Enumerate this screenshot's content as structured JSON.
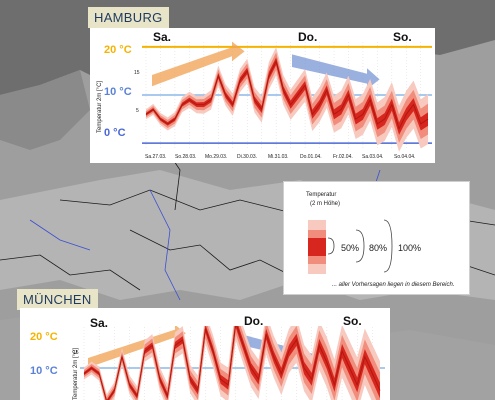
{
  "colors": {
    "warm_line": "#f5b300",
    "cold_line": "#4a67d6",
    "mid_line": "#8ab8e8",
    "band_outer": "#f7c9bf",
    "band_mid": "#f08d7c",
    "band_core": "#d7261e",
    "arrow_warm": "#f0a050",
    "arrow_cold": "#6f8fd0",
    "label_bg": "#e8e4c8",
    "label_text": "#1f3a5f"
  },
  "hamburg": {
    "city": "HAMBURG",
    "day_labels": [
      "Sa.",
      "Do.",
      "So."
    ],
    "temp_labels": {
      "t20": "20 °C",
      "t10": "10 °C",
      "t0": "0 °C"
    },
    "ylabel": "Temperatur 2m [°C]",
    "ytick_labels": [
      "15",
      "5"
    ],
    "date_labels": [
      "Sa.27.03.",
      "So.28.03.",
      "Mo.29.03.",
      "Di.30.03.",
      "Mi.31.03.",
      "Do.01.04.",
      "Fr.02.04.",
      "Sa.03.04.",
      "So.04.04."
    ]
  },
  "muenchen": {
    "city": "MÜNCHEN",
    "day_labels": [
      "Sa.",
      "Do.",
      "So."
    ],
    "temp_labels": {
      "t20": "20 °C",
      "t10": "10 °C"
    },
    "ylabel": "Temperatur 2m [°C]",
    "ytick_labels": [
      "15"
    ]
  },
  "legend": {
    "title": "Temperatur",
    "subtitle": "(2 m Höhe)",
    "p50": "50%",
    "p80": "80%",
    "p100": "100%",
    "note": "... aller Vorhersagen liegen in diesem Bereich."
  },
  "chart_data": [
    {
      "type": "area",
      "city": "HAMBURG",
      "x": [
        0,
        1,
        2,
        3,
        4,
        5,
        6,
        7,
        8,
        9,
        10,
        11,
        12,
        13,
        14,
        15,
        16,
        17,
        18,
        19,
        20,
        21,
        22,
        23,
        24,
        25,
        26,
        27,
        28,
        29,
        30,
        31,
        32,
        33,
        34,
        35,
        36,
        37,
        38,
        39
      ],
      "series": [
        {
          "values": [
            6,
            7,
            5,
            4,
            5,
            8,
            9,
            8,
            8,
            9,
            14,
            10,
            8,
            13,
            15,
            9,
            7,
            14,
            17,
            11,
            8,
            10,
            12,
            6,
            8,
            11,
            6,
            7,
            10,
            5,
            6,
            9,
            4,
            5,
            8,
            3,
            6,
            8,
            4,
            5
          ]
        }
      ],
      "x_tick_labels": [
        "Sa.27.03.",
        "So.28.03.",
        "Mo.29.03.",
        "Di.30.03.",
        "Mi.31.03.",
        "Do.01.04.",
        "Fr.02.04.",
        "Sa.03.04.",
        "So.04.04."
      ],
      "reference_lines": [
        20,
        10,
        0
      ],
      "ylabel": "Temperatur 2m [°C]",
      "ylim": [
        -1,
        21
      ],
      "grid": true
    },
    {
      "type": "area",
      "city": "MÜNCHEN",
      "x": [
        0,
        1,
        2,
        3,
        4,
        5,
        6,
        7,
        8,
        9,
        10,
        11,
        12,
        13,
        14,
        15,
        16,
        17,
        18,
        19,
        20,
        21,
        22,
        23,
        24,
        25,
        26,
        27,
        28,
        29,
        30,
        31,
        32,
        33,
        34,
        35,
        36,
        37,
        38,
        39
      ],
      "series": [
        {
          "values": [
            9,
            10,
            9,
            4,
            6,
            12,
            7,
            5,
            13,
            14,
            8,
            5,
            14,
            15,
            8,
            6,
            17,
            13,
            8,
            7,
            18,
            14,
            10,
            8,
            16,
            12,
            9,
            13,
            15,
            10,
            8,
            14,
            11,
            7,
            13,
            10,
            7,
            12,
            9,
            6
          ]
        }
      ],
      "reference_lines": [
        20,
        10
      ],
      "ylabel": "Temperatur 2m [°C]",
      "ylim": [
        -1,
        21
      ],
      "grid": true
    }
  ]
}
